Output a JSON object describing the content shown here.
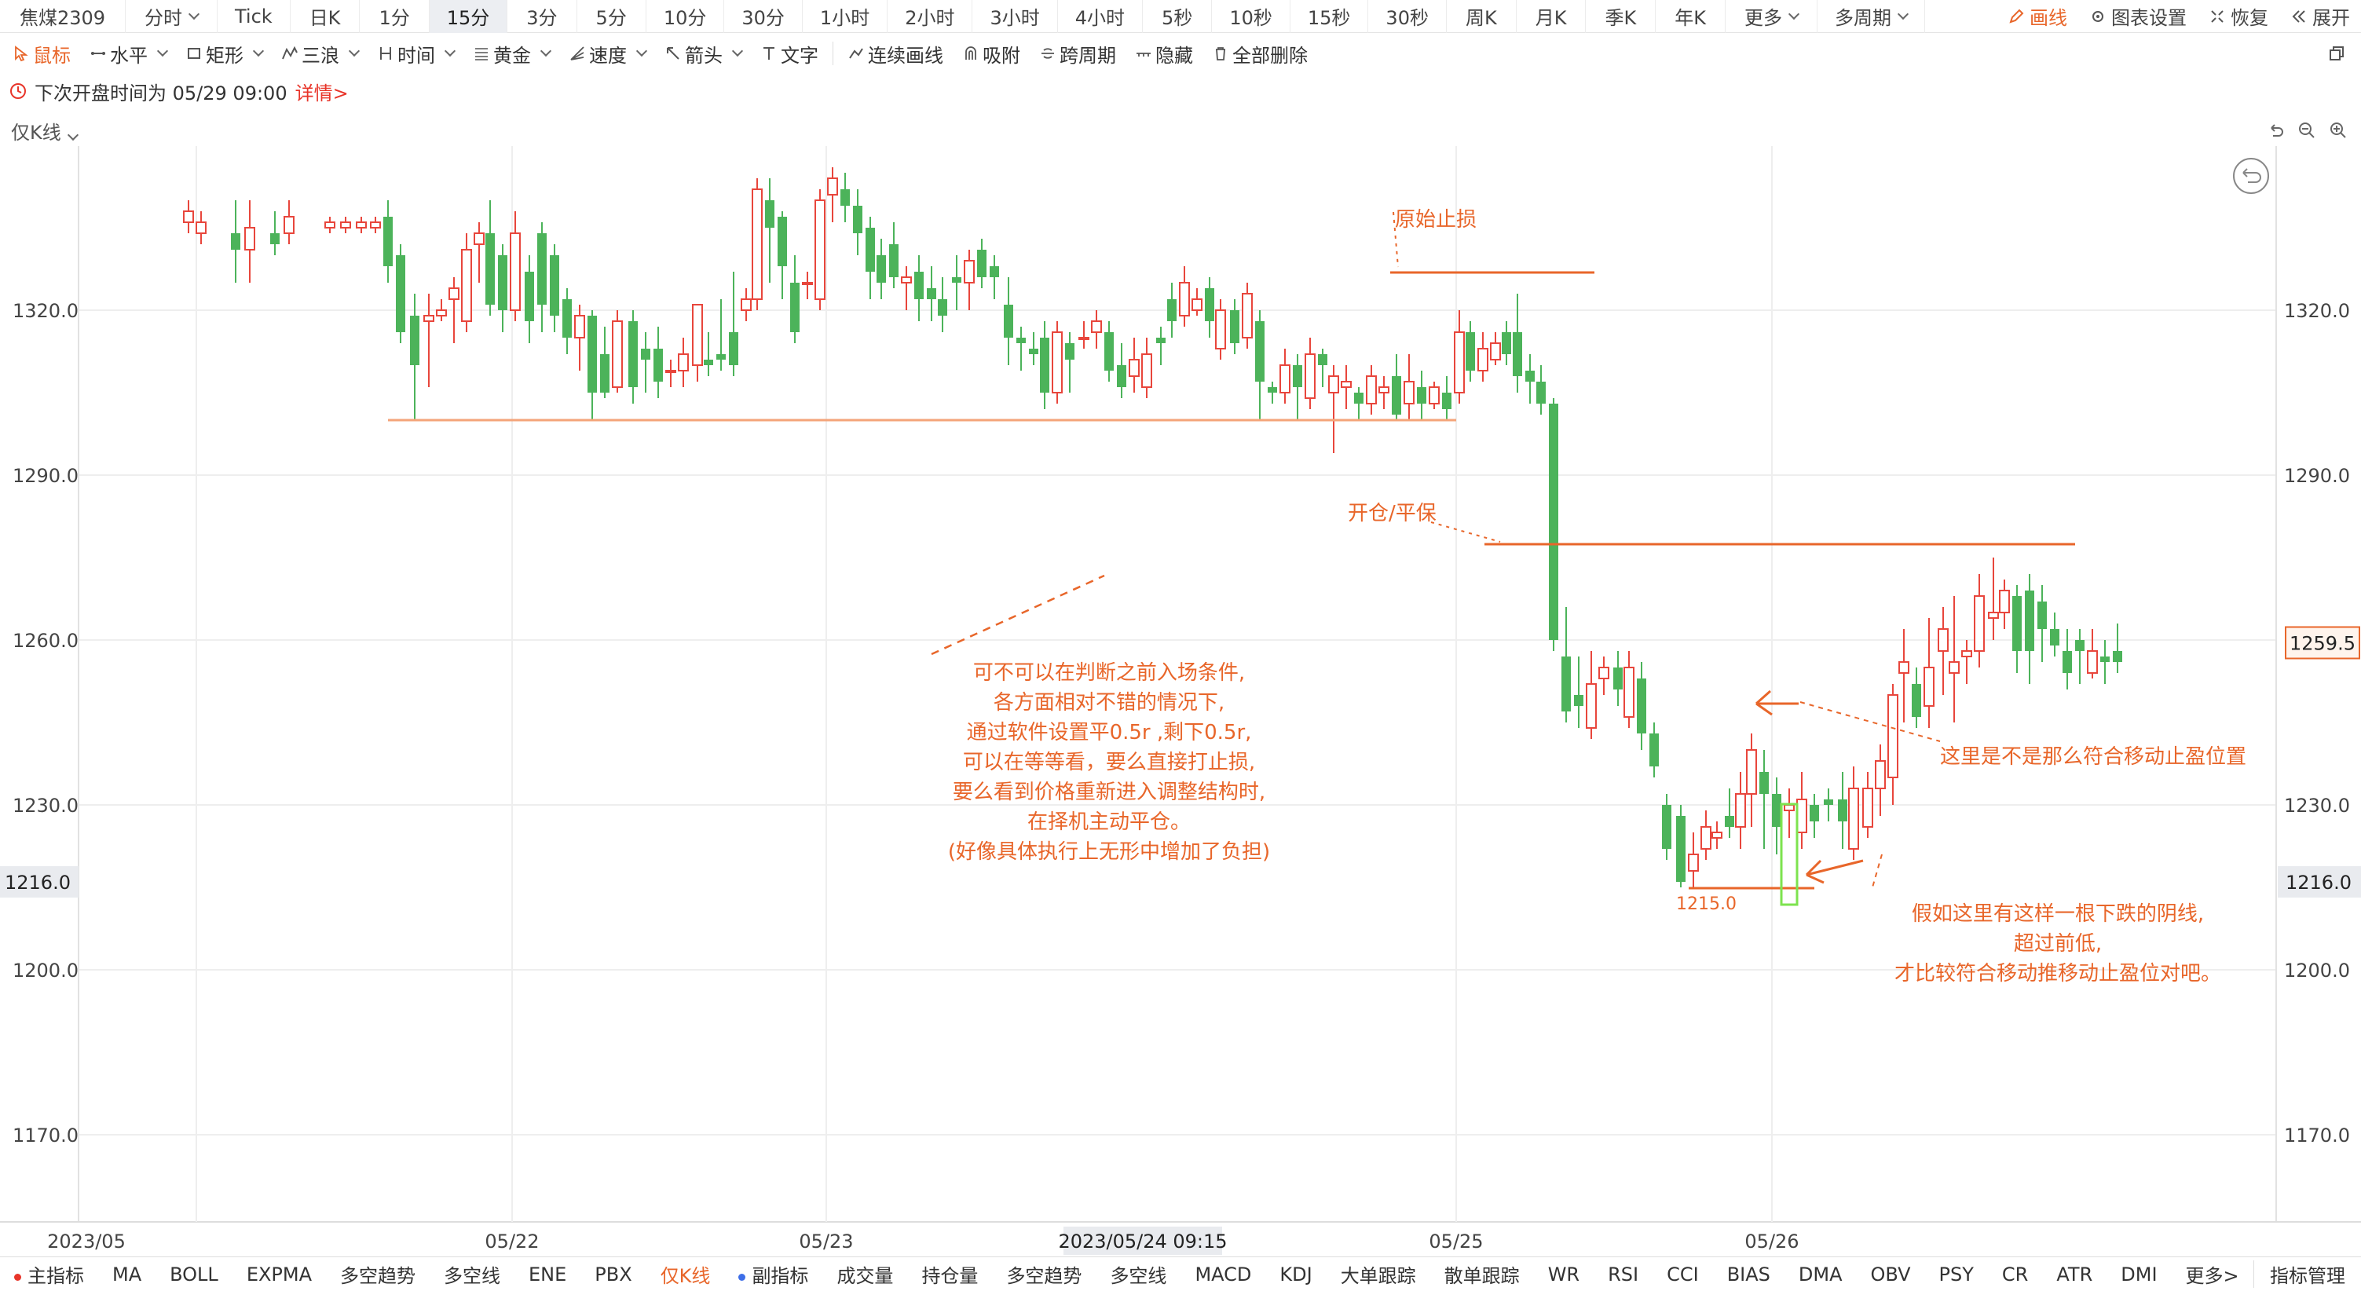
{
  "period_bar": {
    "symbol": "焦煤2309",
    "periods": [
      "分时",
      "Tick",
      "日K",
      "1分",
      "15分",
      "3分",
      "5分",
      "10分",
      "30分",
      "1小时",
      "2小时",
      "3小时",
      "4小时",
      "5秒",
      "10秒",
      "15秒",
      "30秒",
      "周K",
      "月K",
      "季K",
      "年K",
      "更多",
      "多周期"
    ],
    "active": "15分",
    "draw_label": "画线",
    "settings_label": "图表设置",
    "restore_label": "恢复",
    "expand_label": "展开"
  },
  "draw_bar": {
    "tools": [
      "鼠标",
      "水平",
      "矩形",
      "三浪",
      "时间",
      "黄金",
      "速度",
      "箭头",
      "文字",
      "连续画线",
      "吸附",
      "跨周期",
      "隐藏",
      "全部删除"
    ],
    "active": "鼠标"
  },
  "notice": {
    "text": "下次开盘时间为 05/29 09:00",
    "detail_link": "详情>"
  },
  "chart_head": {
    "mode_label": "仅K线"
  },
  "chart_data": {
    "type": "candlestick",
    "y_ticks": [
      "1320.0",
      "1290.0",
      "1260.0",
      "1230.0",
      "1200.0",
      "1170.0"
    ],
    "x_ticks": [
      "2023/05",
      "05/22",
      "05/23",
      "05/24 09:15",
      "05/25",
      "05/26"
    ],
    "crosshair_time": "2023/05/24 09:15",
    "last_price": "1259.5",
    "crosshair_price": "1216.0",
    "low_label": "1215.0",
    "up_color": "#e8463c",
    "down_color": "#4cb35a",
    "annotation_color": "#e8662a",
    "annotations": {
      "stop_loss": "原始止损",
      "breakeven": "开仓/平保",
      "question_lines": [
        "可不可以在判断之前入场条件,",
        "各方面相对不错的情况下,",
        "通过软件设置平0.5r ,剩下0.5r,",
        "可以在等等看，要么直接打止损,",
        "要么看到价格重新进入调整结构时,",
        "在择机主动平仓。",
        "(好像具体执行上无形中增加了负担)"
      ],
      "position_question": "这里是不是那么符合移动止盈位置",
      "hypothesis_lines": [
        "假如这里有这样一根下跌的阴线,",
        "超过前低,",
        "才比较符合移动推移动止盈位对吧。"
      ]
    }
  },
  "indicator_bar": {
    "main_label": "主指标",
    "main_items": [
      "MA",
      "BOLL",
      "EXPMA",
      "多空趋势",
      "多空线",
      "ENE",
      "PBX",
      "仅K线"
    ],
    "main_active": "仅K线",
    "sub_label": "副指标",
    "sub_items": [
      "成交量",
      "持仓量",
      "多空趋势",
      "多空线",
      "MACD",
      "KDJ",
      "大单跟踪",
      "散单跟踪",
      "WR",
      "RSI",
      "CCI",
      "BIAS",
      "DMA",
      "OBV",
      "PSY",
      "CR",
      "ATR",
      "DMI",
      "更多>"
    ],
    "manager_label": "指标管理"
  }
}
